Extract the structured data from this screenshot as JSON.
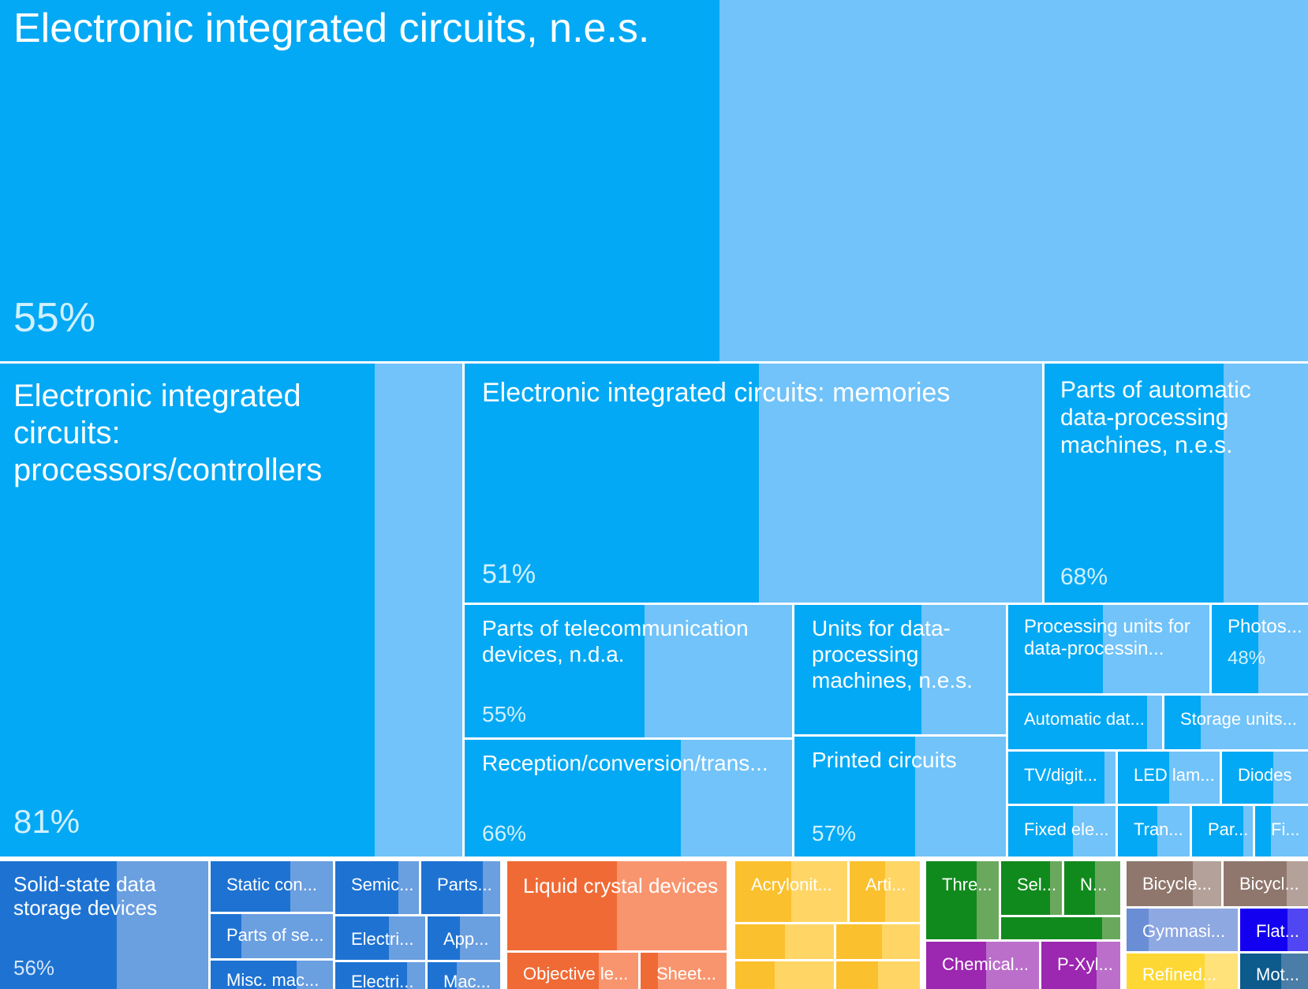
{
  "chart_data": {
    "type": "treemap",
    "colors": {
      "electronics_dark": "#03a9f4",
      "electronics_light": "#71c3f9",
      "machinery_dark": "#1e73d2",
      "machinery_light": "#6a9fe0",
      "optics_dark": "#f06a35",
      "optics_light": "#f8956e",
      "plastics_dark": "#fbc02d",
      "plastics_light": "#ffd666",
      "chemicals_dark": "#118a1d",
      "chemicals_light": "#6aa95d",
      "chem2_dark": "#9c27b0",
      "chem2_light": "#bb6fcb",
      "vehicles_dark": "#8f776d",
      "vehicles_light": "#b3a19a",
      "misc_dark": "#6a8ed6",
      "misc_light": "#8ea8e2",
      "furniture_dark": "#1400f0",
      "furniture_light": "#5046f3",
      "metals_dark": "#fdd835",
      "metals_light": "#ffe27a",
      "transport_dark": "#0d5a8c",
      "transport_light": "#4a7ea8"
    },
    "items": [
      {
        "name": "Electronic integrated circuits, n.e.s.",
        "share": "55%",
        "fraction": 0.55,
        "group": "electronics"
      },
      {
        "name": "Electronic integrated circuits: processors/controllers",
        "share": "81%",
        "fraction": 0.81,
        "group": "electronics"
      },
      {
        "name": "Electronic integrated circuits: memories",
        "share": "51%",
        "fraction": 0.51,
        "group": "electronics"
      },
      {
        "name": "Parts of automatic data-processing machines, n.e.s.",
        "share": "68%",
        "fraction": 0.68,
        "group": "electronics"
      },
      {
        "name": "Parts of telecommunication devices, n.d.a.",
        "share": "55%",
        "fraction": 0.55,
        "group": "electronics"
      },
      {
        "name": "Units for data-processing machines, n.e.s.",
        "share": "",
        "fraction": 0.6,
        "group": "electronics"
      },
      {
        "name": "Processing units for data-processin...",
        "share": "",
        "fraction": 0.47,
        "group": "electronics"
      },
      {
        "name": "Photos...",
        "share": "48%",
        "fraction": 0.48,
        "group": "electronics"
      },
      {
        "name": "Automatic dat...",
        "share": "",
        "fraction": 0.9,
        "group": "electronics"
      },
      {
        "name": "Storage units...",
        "share": "",
        "fraction": 0.25,
        "group": "electronics"
      },
      {
        "name": "Reception/conversion/trans...",
        "share": "66%",
        "fraction": 0.66,
        "group": "electronics"
      },
      {
        "name": "Printed circuits",
        "share": "57%",
        "fraction": 0.57,
        "group": "electronics"
      },
      {
        "name": "TV/digit...",
        "share": "",
        "fraction": 0.9,
        "group": "electronics"
      },
      {
        "name": "LED lam...",
        "share": "",
        "fraction": 0.5,
        "group": "electronics"
      },
      {
        "name": "Diodes",
        "share": "",
        "fraction": 0.6,
        "group": "electronics"
      },
      {
        "name": "Fixed ele...",
        "share": "",
        "fraction": 0.6,
        "group": "electronics"
      },
      {
        "name": "Tran...",
        "share": "",
        "fraction": 0.55,
        "group": "electronics"
      },
      {
        "name": "Par...",
        "share": "",
        "fraction": 0.85,
        "group": "electronics"
      },
      {
        "name": "Fi...",
        "share": "",
        "fraction": 0.3,
        "group": "electronics"
      },
      {
        "name": "Solid-state data storage devices",
        "share": "56%",
        "fraction": 0.56,
        "group": "machinery"
      },
      {
        "name": "Static con...",
        "share": "",
        "fraction": 0.65,
        "group": "machinery"
      },
      {
        "name": "Parts of se...",
        "share": "",
        "fraction": 0.25,
        "group": "machinery"
      },
      {
        "name": "Misc. mac...",
        "share": "",
        "fraction": 0.7,
        "group": "machinery"
      },
      {
        "name": "Semic...",
        "share": "",
        "fraction": 0.75,
        "group": "machinery"
      },
      {
        "name": "Parts...",
        "share": "",
        "fraction": 0.78,
        "group": "machinery"
      },
      {
        "name": "Electri...",
        "share": "",
        "fraction": 0.6,
        "group": "machinery"
      },
      {
        "name": "App...",
        "share": "",
        "fraction": 0.45,
        "group": "machinery"
      },
      {
        "name": "Electri...",
        "share": "",
        "fraction": 0.8,
        "group": "machinery"
      },
      {
        "name": "Mac...",
        "share": "",
        "fraction": 0.4,
        "group": "machinery"
      },
      {
        "name": "Liquid crystal devices",
        "share": "",
        "fraction": 0.5,
        "group": "optics"
      },
      {
        "name": "Objective le...",
        "share": "",
        "fraction": 0.7,
        "group": "optics"
      },
      {
        "name": "Sheet...",
        "share": "",
        "fraction": 0.2,
        "group": "optics"
      },
      {
        "name": "Acrylonit...",
        "share": "",
        "fraction": 0.5,
        "group": "plastics"
      },
      {
        "name": "Arti...",
        "share": "",
        "fraction": 0.5,
        "group": "plastics"
      },
      {
        "name": "",
        "share": "",
        "fraction": 0.5,
        "group": "plastics"
      },
      {
        "name": "",
        "share": "",
        "fraction": 0.55,
        "group": "plastics"
      },
      {
        "name": "",
        "share": "",
        "fraction": 0.4,
        "group": "plastics"
      },
      {
        "name": "",
        "share": "",
        "fraction": 0.5,
        "group": "plastics"
      },
      {
        "name": "",
        "share": "",
        "fraction": 0.7,
        "group": "plastics"
      },
      {
        "name": "",
        "share": "",
        "fraction": 0.6,
        "group": "plastics"
      },
      {
        "name": "Thre...",
        "share": "",
        "fraction": 0.7,
        "group": "chemicals"
      },
      {
        "name": "Sel...",
        "share": "",
        "fraction": 0.8,
        "group": "chemicals"
      },
      {
        "name": "N...",
        "share": "",
        "fraction": 0.55,
        "group": "chemicals"
      },
      {
        "name": "",
        "share": "",
        "fraction": 0.85,
        "group": "chemicals"
      },
      {
        "name": "Chemical...",
        "share": "",
        "fraction": 0.53,
        "group": "chem2"
      },
      {
        "name": "P-Xyl...",
        "share": "",
        "fraction": 0.7,
        "group": "chem2"
      },
      {
        "name": "Bicycle...",
        "share": "",
        "fraction": 0.7,
        "group": "vehicles"
      },
      {
        "name": "Bicycl...",
        "share": "",
        "fraction": 0.75,
        "group": "vehicles"
      },
      {
        "name": "Gymnasi...",
        "share": "",
        "fraction": 0.2,
        "group": "misc"
      },
      {
        "name": "Flat...",
        "share": "",
        "fraction": 0.7,
        "group": "furniture"
      },
      {
        "name": "Refined...",
        "share": "",
        "fraction": 0.7,
        "group": "metals"
      },
      {
        "name": "Mot...",
        "share": "",
        "fraction": 0.6,
        "group": "transport"
      }
    ]
  }
}
